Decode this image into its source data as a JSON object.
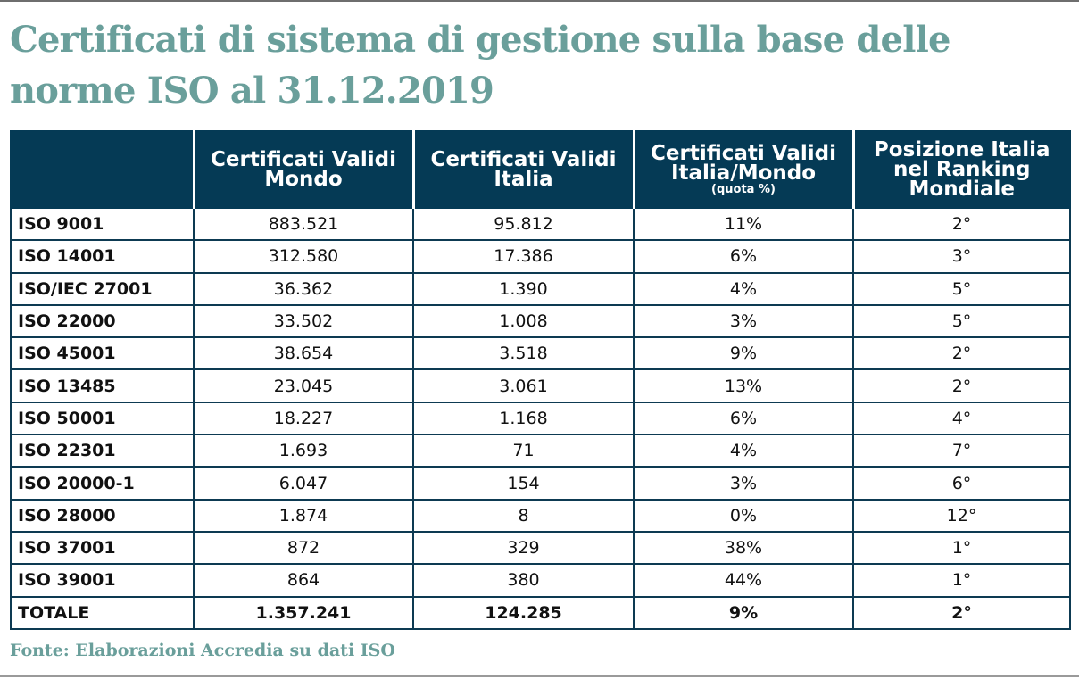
{
  "title": "Certificati di sistema di gestione sulla base delle norme ISO al 31.12.2019",
  "table": {
    "headers": [
      {
        "line1": "",
        "line2": "",
        "sub": ""
      },
      {
        "line1": "Certificati Validi",
        "line2": "Mondo",
        "sub": ""
      },
      {
        "line1": "Certificati Validi",
        "line2": "Italia",
        "sub": ""
      },
      {
        "line1": "Certificati Validi",
        "line2": "Italia/Mondo",
        "sub": "(quota %)"
      },
      {
        "line1": "Posizione Italia",
        "line2": "nel Ranking",
        "line3": "Mondiale"
      }
    ],
    "rows": [
      {
        "norm": "ISO 9001",
        "mondo": "883.521",
        "italia": "95.812",
        "quota": "11%",
        "posizione": "2°"
      },
      {
        "norm": "ISO 14001",
        "mondo": "312.580",
        "italia": "17.386",
        "quota": "6%",
        "posizione": "3°"
      },
      {
        "norm": "ISO/IEC 27001",
        "mondo": "36.362",
        "italia": "1.390",
        "quota": "4%",
        "posizione": "5°"
      },
      {
        "norm": "ISO 22000",
        "mondo": "33.502",
        "italia": "1.008",
        "quota": "3%",
        "posizione": "5°"
      },
      {
        "norm": "ISO 45001",
        "mondo": "38.654",
        "italia": "3.518",
        "quota": "9%",
        "posizione": "2°"
      },
      {
        "norm": "ISO 13485",
        "mondo": "23.045",
        "italia": "3.061",
        "quota": "13%",
        "posizione": "2°"
      },
      {
        "norm": "ISO 50001",
        "mondo": "18.227",
        "italia": "1.168",
        "quota": "6%",
        "posizione": "4°"
      },
      {
        "norm": "ISO 22301",
        "mondo": "1.693",
        "italia": "71",
        "quota": "4%",
        "posizione": "7°"
      },
      {
        "norm": "ISO 20000-1",
        "mondo": "6.047",
        "italia": "154",
        "quota": "3%",
        "posizione": "6°"
      },
      {
        "norm": "ISO 28000",
        "mondo": "1.874",
        "italia": "8",
        "quota": "0%",
        "posizione": "12°"
      },
      {
        "norm": "ISO 37001",
        "mondo": "872",
        "italia": "329",
        "quota": "38%",
        "posizione": "1°"
      },
      {
        "norm": "ISO 39001",
        "mondo": "864",
        "italia": "380",
        "quota": "44%",
        "posizione": "1°"
      }
    ],
    "total": {
      "norm": "TOTALE",
      "mondo": "1.357.241",
      "italia": "124.285",
      "quota": "9%",
      "posizione": "2°"
    }
  },
  "source": "Fonte: Elaborazioni Accredia su dati ISO",
  "colors": {
    "title": "#6a9f9b",
    "header_bg": "#053a55",
    "header_text": "#ffffff",
    "border": "#0d3a52",
    "source": "#6a9f9b"
  }
}
